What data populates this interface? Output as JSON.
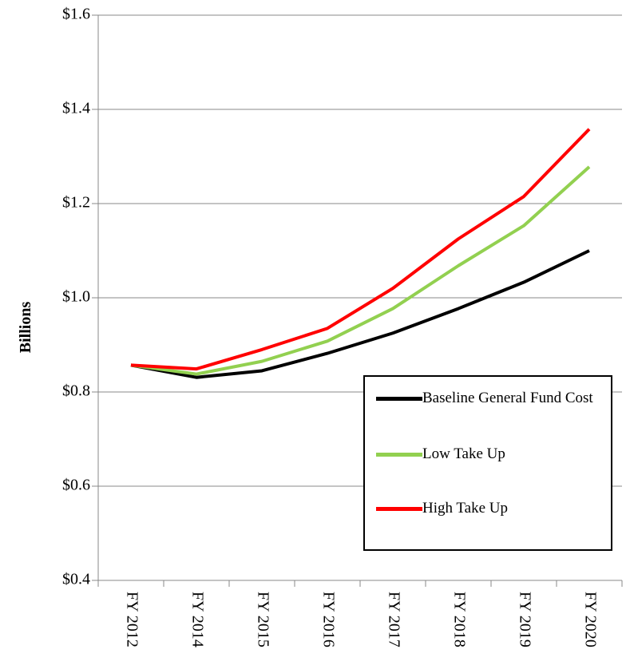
{
  "chart_data": {
    "type": "line",
    "y_label": "Billions",
    "categories": [
      "FY 2012",
      "FY 2014",
      "FY 2015",
      "FY 2016",
      "FY 2017",
      "FY 2018",
      "FY 2019",
      "FY 2020"
    ],
    "series": [
      {
        "name": "Baseline General Fund Cost",
        "color": "#000000",
        "values": [
          0.857,
          0.831,
          0.845,
          0.882,
          0.925,
          0.977,
          1.033,
          1.1
        ]
      },
      {
        "name": "Low Take Up",
        "color": "#92d050",
        "values": [
          0.857,
          0.838,
          0.865,
          0.908,
          0.977,
          1.068,
          1.153,
          1.278
        ]
      },
      {
        "name": "High Take Up",
        "color": "#ff0000",
        "values": [
          0.857,
          0.849,
          0.89,
          0.935,
          1.02,
          1.125,
          1.215,
          1.358
        ]
      }
    ],
    "ylim": [
      0.4,
      1.6
    ],
    "yticks": [
      {
        "value": 0.4,
        "label": "$0.4"
      },
      {
        "value": 0.6,
        "label": "$0.6"
      },
      {
        "value": 0.8,
        "label": "$0.8"
      },
      {
        "value": 1.0,
        "label": "$1.0"
      },
      {
        "value": 1.2,
        "label": "$1.2"
      },
      {
        "value": 1.4,
        "label": "$1.4"
      },
      {
        "value": 1.6,
        "label": "$1.6"
      }
    ],
    "grid": true
  }
}
